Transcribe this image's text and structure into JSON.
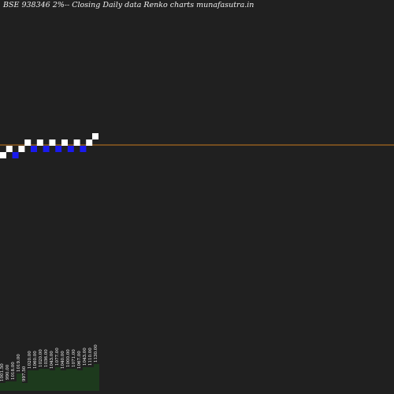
{
  "header": {
    "title": "BSE 938346  2%-- Closing Daily data  Renko  charts munafasutra.in"
  },
  "chart_data": {
    "type": "renko",
    "title": "BSE 938346  2%-- Closing Daily data  Renko  charts munafasutra.in",
    "brick_size_percent": 2,
    "reference_line": {
      "value": 1046.0,
      "color": "#c87a1e"
    },
    "colors": {
      "up": "#ffffff",
      "down": "#1a1aee",
      "volume": "#1d3a1d",
      "background": "#202020"
    },
    "bricks": [
      {
        "dir": "up",
        "low": 1001.5
      },
      {
        "dir": "up",
        "low": 1022.5
      },
      {
        "dir": "down",
        "low": 1001.5
      },
      {
        "dir": "up",
        "low": 1022.5
      },
      {
        "dir": "up",
        "low": 1043.5
      },
      {
        "dir": "down",
        "low": 1022.5
      },
      {
        "dir": "up",
        "low": 1043.5
      },
      {
        "dir": "down",
        "low": 1022.5
      },
      {
        "dir": "up",
        "low": 1043.5
      },
      {
        "dir": "down",
        "low": 1022.5
      },
      {
        "dir": "up",
        "low": 1043.5
      },
      {
        "dir": "down",
        "low": 1022.5
      },
      {
        "dir": "up",
        "low": 1043.5
      },
      {
        "dir": "down",
        "low": 1022.5
      },
      {
        "dir": "up",
        "low": 1043.5
      },
      {
        "dir": "up",
        "low": 1064.5
      }
    ],
    "volume_labels": [
      "1001.50",
      "990.00",
      "1018.00",
      "1019.00",
      "997.50",
      "1020.00",
      "1060.00",
      "1020.00",
      "1036.00",
      "1043.00",
      "1077.00",
      "1040.00",
      "1000.00",
      "1071.00",
      "1067.00",
      "1043.00",
      "1110.00",
      "1130.00"
    ],
    "volume_values": [
      10,
      12,
      12,
      22,
      10,
      26,
      26,
      28,
      28,
      26,
      30,
      26,
      28,
      28,
      26,
      30,
      30,
      34
    ]
  }
}
